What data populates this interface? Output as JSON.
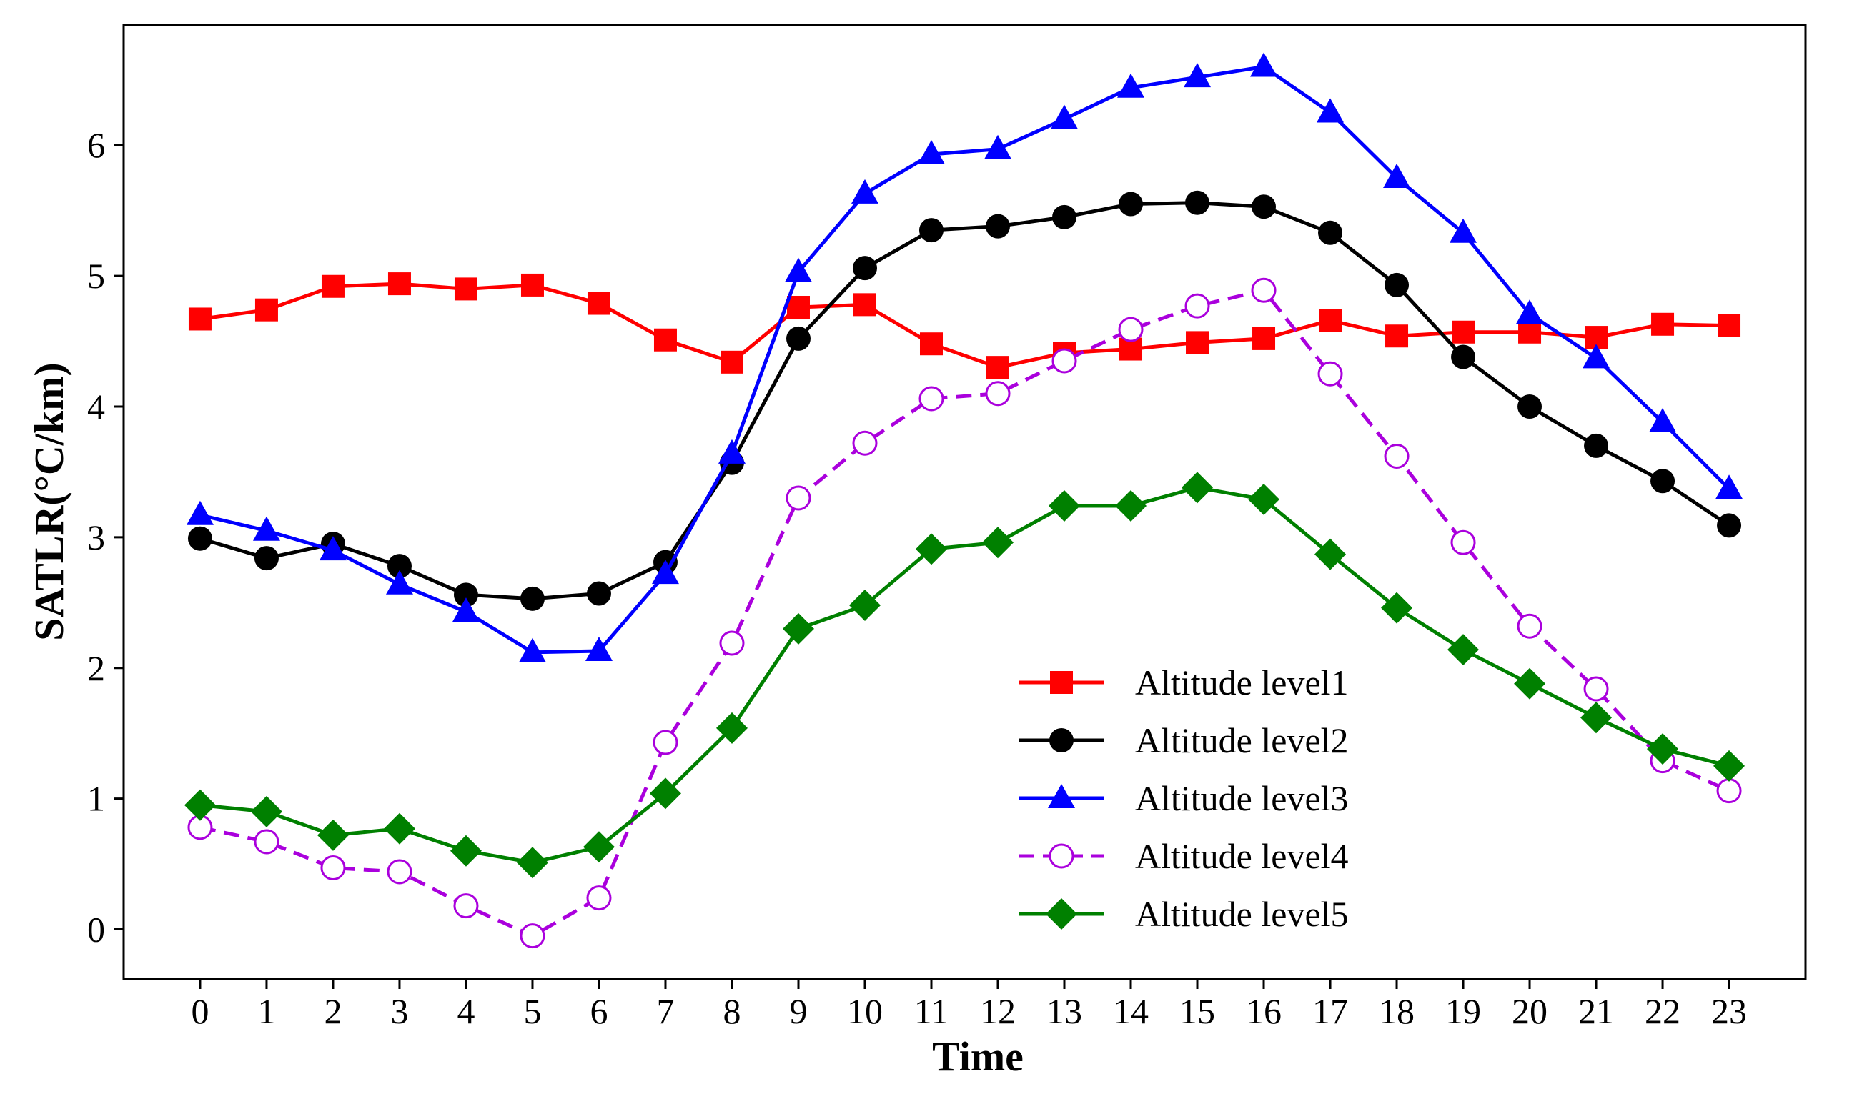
{
  "chart_data": {
    "type": "line",
    "title": "",
    "xlabel": "Time",
    "ylabel": "SATLR(°C/km)",
    "x": [
      0,
      1,
      2,
      3,
      4,
      5,
      6,
      7,
      8,
      9,
      10,
      11,
      12,
      13,
      14,
      15,
      16,
      17,
      18,
      19,
      20,
      21,
      22,
      23
    ],
    "xlim": [
      -1.15,
      24.15
    ],
    "ylim": [
      -0.38,
      6.92
    ],
    "yticks": [
      0,
      1,
      2,
      3,
      4,
      5,
      6
    ],
    "grid": false,
    "legend_position": "lower-center",
    "series": [
      {
        "name": "Altitude level1",
        "color": "#ff0000",
        "marker": "square",
        "linestyle": "solid",
        "values": [
          4.67,
          4.74,
          4.92,
          4.94,
          4.9,
          4.93,
          4.79,
          4.51,
          4.34,
          4.76,
          4.78,
          4.48,
          4.3,
          4.41,
          4.44,
          4.49,
          4.52,
          4.66,
          4.54,
          4.57,
          4.57,
          4.53,
          4.63,
          4.62
        ]
      },
      {
        "name": "Altitude level2",
        "color": "#000000",
        "marker": "circle",
        "linestyle": "solid",
        "values": [
          2.99,
          2.84,
          2.95,
          2.78,
          2.56,
          2.53,
          2.57,
          2.81,
          3.57,
          4.52,
          5.06,
          5.35,
          5.38,
          5.45,
          5.55,
          5.56,
          5.53,
          5.33,
          4.93,
          4.38,
          4.0,
          3.7,
          3.43,
          3.09
        ]
      },
      {
        "name": "Altitude level3",
        "color": "#0000ff",
        "marker": "triangle",
        "linestyle": "solid",
        "values": [
          3.17,
          3.05,
          2.9,
          2.64,
          2.43,
          2.12,
          2.13,
          2.72,
          3.64,
          5.03,
          5.63,
          5.93,
          5.97,
          6.2,
          6.44,
          6.52,
          6.6,
          6.25,
          5.75,
          5.33,
          4.71,
          4.37,
          3.88,
          3.37
        ]
      },
      {
        "name": "Altitude level4",
        "color": "#aa00dd",
        "marker": "open-circle",
        "linestyle": "dashed",
        "values": [
          0.78,
          0.67,
          0.47,
          0.44,
          0.18,
          -0.05,
          0.24,
          1.43,
          2.19,
          3.3,
          3.72,
          4.06,
          4.1,
          4.35,
          4.59,
          4.77,
          4.89,
          4.25,
          3.62,
          2.96,
          2.32,
          1.84,
          1.29,
          1.06
        ]
      },
      {
        "name": "Altitude level5",
        "color": "#008000",
        "marker": "diamond",
        "linestyle": "solid",
        "values": [
          0.95,
          0.9,
          0.72,
          0.77,
          0.6,
          0.51,
          0.63,
          1.04,
          1.54,
          2.3,
          2.48,
          2.91,
          2.96,
          3.24,
          3.24,
          3.38,
          3.29,
          2.87,
          2.46,
          2.14,
          1.88,
          1.62,
          1.38,
          1.25
        ]
      }
    ]
  }
}
